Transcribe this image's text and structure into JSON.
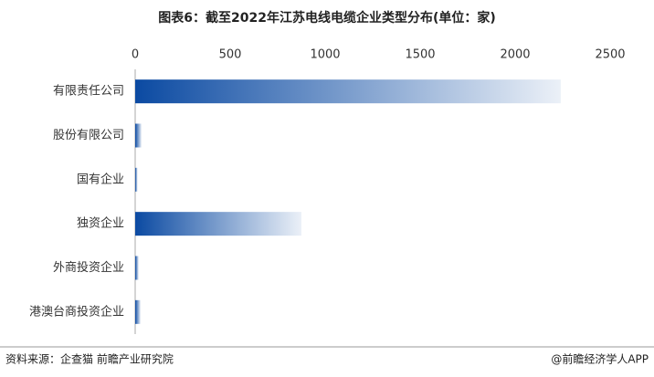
{
  "chart_data": {
    "type": "bar",
    "orientation": "horizontal",
    "title": "图表6：截至2022年江苏电线电缆企业类型分布(单位：家)",
    "categories": [
      "有限责任公司",
      "股份有限公司",
      "国有企业",
      "独资企业",
      "外商投资企业",
      "港澳台商投资企业"
    ],
    "values": [
      2240,
      33,
      12,
      875,
      18,
      28
    ],
    "color": "#0b4aa2",
    "xlim": [
      0,
      2500
    ],
    "xticks": [
      0,
      500,
      1000,
      1500,
      2000,
      2500
    ],
    "grid": false
  },
  "footer": {
    "source": "资料来源：企查猫 前瞻产业研究院",
    "brand": "@前瞻经济学人APP"
  }
}
